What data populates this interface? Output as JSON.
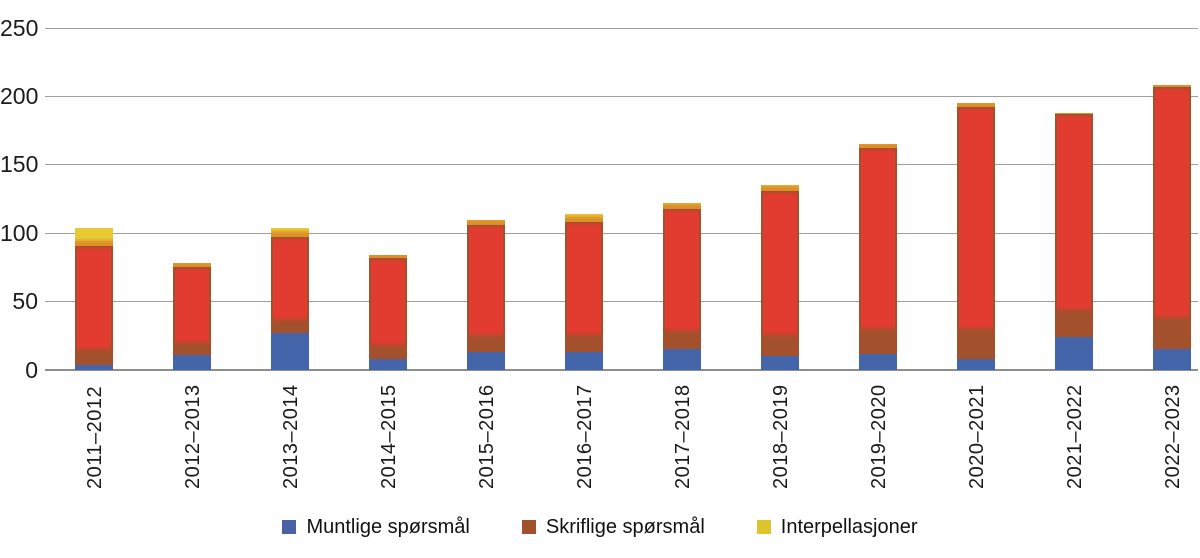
{
  "chart_data": {
    "type": "bar",
    "stacked": true,
    "title": "",
    "xlabel": "",
    "ylabel": "",
    "categories": [
      "2011–2012",
      "2012–2013",
      "2013–2014",
      "2014–2015",
      "2015–2016",
      "2016–2017",
      "2017–2018",
      "2018–2019",
      "2019–2020",
      "2020–2021",
      "2021–2022",
      "2022–2023"
    ],
    "series": [
      {
        "name": "Muntlige spørsmål",
        "color": "#4565ab",
        "legend_color": "#4a61a9",
        "values": [
          4,
          11,
          27,
          8,
          13,
          13,
          15,
          10,
          12,
          8,
          24,
          15
        ]
      },
      {
        "name": "Skriflige spørsmål",
        "color": "#e23b2f",
        "edge_color": "#a3502d",
        "legend_color": "#a3502d",
        "values": [
          87,
          64,
          70,
          74,
          93,
          95,
          103,
          121,
          150,
          184,
          163,
          192
        ]
      },
      {
        "name": "Interpellasjoner",
        "color": "#e6c933",
        "edge_color": "#dd8f28",
        "legend_color": "#ddc32c",
        "values": [
          13,
          3,
          7,
          2,
          4,
          6,
          4,
          4,
          3,
          3,
          1,
          1
        ]
      }
    ],
    "ylim": [
      0,
      250
    ],
    "yticks": [
      0,
      50,
      100,
      150,
      200,
      250
    ],
    "grid": true,
    "legend_position": "bottom"
  }
}
